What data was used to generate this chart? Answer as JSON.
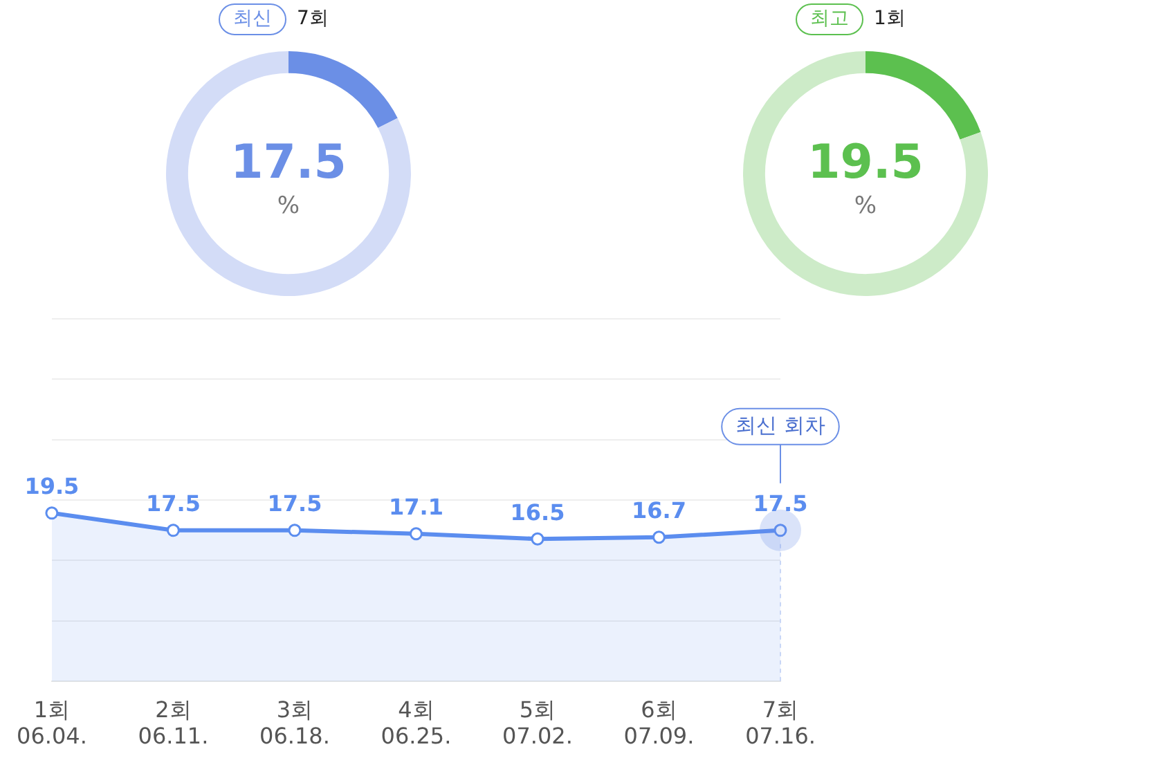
{
  "chart_data": [
    {
      "type": "donut",
      "title": "최신",
      "subtitle": "7회",
      "categories": [
        null,
        null
      ],
      "values": [
        17.5,
        82.5
      ],
      "colors": [
        "#6b8fe6",
        "#d3dcf7"
      ],
      "value_labels": [
        "17.5",
        null
      ],
      "annotations": [
        "%"
      ],
      "legend": false
    },
    {
      "type": "donut",
      "title": "최고",
      "subtitle": "1회",
      "categories": [
        null,
        null
      ],
      "values": [
        19.5,
        80.5
      ],
      "colors": [
        "#5cc04f",
        "#cdebc8"
      ],
      "value_labels": [
        "19.5",
        null
      ],
      "annotations": [
        "%"
      ],
      "legend": false
    },
    {
      "type": "area",
      "categories": [
        "1회\n06.04.",
        "2회\n06.11.",
        "3회\n06.18.",
        "4회\n06.25.",
        "5회\n07.02.",
        "6회\n07.09.",
        "7회\n07.16."
      ],
      "series": [
        {
          "color": "#5b8def",
          "values": [
            19.5,
            17.5,
            17.5,
            17.1,
            16.5,
            16.7,
            17.5
          ]
        }
      ],
      "ylim": [
        0,
        42
      ],
      "yticks": [
        {
          "value": 0,
          "label": null
        },
        {
          "value": 7,
          "label": null
        },
        {
          "value": 14,
          "label": null
        },
        {
          "value": 21,
          "label": null
        },
        {
          "value": 28,
          "label": null
        },
        {
          "value": 35,
          "label": null
        },
        {
          "value": 42,
          "label": null
        }
      ],
      "tick_labels": "x",
      "grid": "y",
      "marker": "circle",
      "data_labels": true,
      "legend": false,
      "annotations": [
        "최신 회차"
      ]
    }
  ]
}
